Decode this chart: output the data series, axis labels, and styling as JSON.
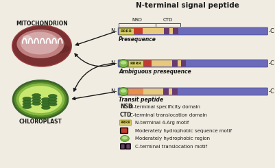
{
  "title": "N-terminal signal peptide",
  "bg_color": "#f0ece2",
  "mitochondrion_label": "MITOCHONDRION",
  "chloroplast_label": "CHLOROPLAST",
  "row_labels": [
    "Presequence",
    "Ambiguous presequence",
    "Transit peptide"
  ],
  "colors": {
    "blue_bar": "#6b6bba",
    "tan_region": "#e8c87a",
    "red_motif": "#c43c2a",
    "orange_region": "#e8904a",
    "purple_motif": "#6a3a6a",
    "rrrr_bg": "#d8cc6a",
    "rrrr_border": "#8a8830",
    "green_circle_outer": "#7ab84a",
    "green_circle_inner": "#b8dd88",
    "arrow_color": "#1a1a1a",
    "bracket_color": "#444444",
    "mito_outer": "#7a3030",
    "mito_rim": "#9a4040",
    "mito_inner": "#c08080",
    "mito_light": "#d4a8a8",
    "chloro_outer_dark": "#3a6628",
    "chloro_outer": "#5a8a2a",
    "chloro_mid": "#88bb44",
    "chloro_inner_bg": "#c8e870",
    "chloro_thylakoid": "#2a5a1a",
    "chloro_thylakoid_mid": "#3a7028",
    "text_color": "#1a1a1a",
    "legend_bold": "#1a1a1a"
  }
}
